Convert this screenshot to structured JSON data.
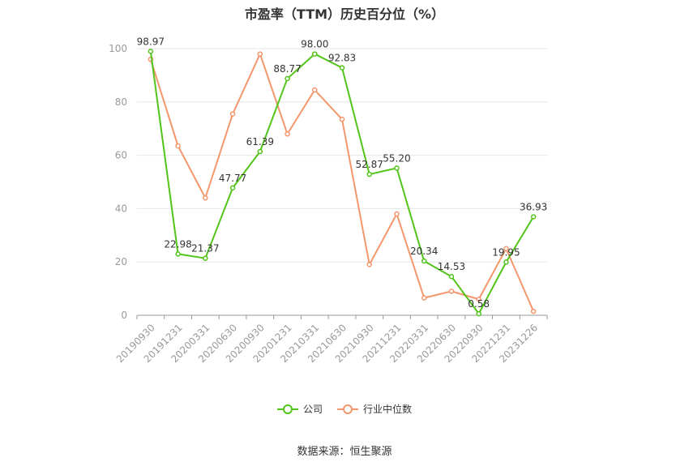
{
  "chart_data": {
    "type": "line",
    "title": "市盈率（TTM）历史百分位（%）",
    "categories": [
      "20190930",
      "20191231",
      "20200331",
      "20200630",
      "20200930",
      "20201231",
      "20210331",
      "20210630",
      "20210930",
      "20211231",
      "20220331",
      "20220630",
      "20220930",
      "20221231",
      "20231226"
    ],
    "ylim": [
      0,
      100
    ],
    "yticks": [
      0,
      20,
      40,
      60,
      80,
      100
    ],
    "grid": true,
    "legend_position": "bottom",
    "series": [
      {
        "name": "公司",
        "color": "#52c41a",
        "values": [
          98.97,
          22.98,
          21.37,
          47.77,
          61.39,
          88.77,
          98.0,
          92.83,
          52.87,
          55.2,
          20.34,
          14.53,
          0.58,
          19.95,
          36.93
        ],
        "labels": [
          "98.97",
          "22.98",
          "21.37",
          "47.77",
          "61.39",
          "88.77",
          "98.00",
          "92.83",
          "52.87",
          "55.20",
          "20.34",
          "14.53",
          "0.58",
          "19.95",
          "36.93"
        ]
      },
      {
        "name": "行业中位数",
        "color": "#f4976c",
        "values": [
          96.0,
          63.5,
          44.0,
          75.5,
          98.0,
          68.0,
          84.5,
          73.5,
          19.0,
          38.0,
          6.5,
          9.0,
          6.0,
          25.0,
          1.5
        ]
      }
    ]
  },
  "source": "数据来源：恒生聚源"
}
